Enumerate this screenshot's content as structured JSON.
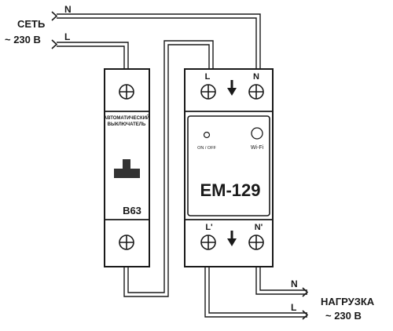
{
  "supply": {
    "line1": "СЕТЬ",
    "line2": "~ 230 В",
    "neutral": "N",
    "phase": "L"
  },
  "breaker": {
    "caption_line1": "АВТОМАТИЧЕСКИЙ",
    "caption_line2": "ВЫКЛЮЧАТЕЛЬ",
    "rating": "B63"
  },
  "device": {
    "model": "EM-129",
    "top_left_label": "L",
    "top_right_label": "N",
    "bottom_left_label": "L'",
    "bottom_right_label": "N'",
    "led_label": "ON / OFF",
    "button_label": "Wi-Fi"
  },
  "load": {
    "line1": "НАГРУЗКА",
    "line2": "~ 230 В",
    "neutral": "N",
    "phase": "L"
  },
  "colors": {
    "ink": "#1a1a1a",
    "handle": "#333333",
    "background": "#ffffff"
  }
}
